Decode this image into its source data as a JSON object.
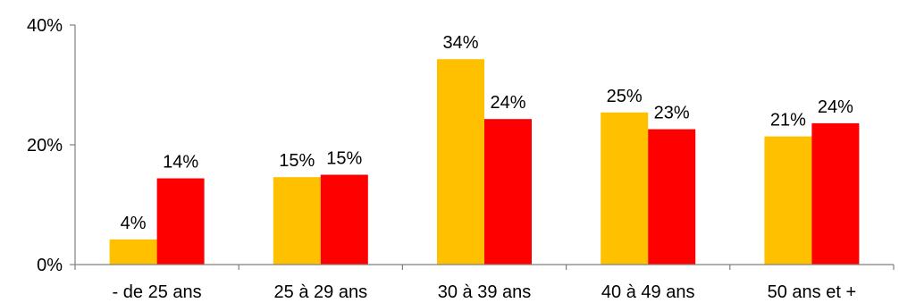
{
  "chart_data": {
    "type": "bar",
    "categories": [
      "- de 25 ans",
      "25 à 29 ans",
      "30 à 39 ans",
      "40 à 49 ans",
      "50 ans et +"
    ],
    "series": [
      {
        "values": [
          4.2,
          14.6,
          34.3,
          25.4,
          21.4
        ],
        "color": "#FFC000",
        "labels": [
          "4%",
          "15%",
          "34%",
          "25%",
          "21%"
        ]
      },
      {
        "values": [
          14.4,
          15.0,
          24.3,
          22.6,
          23.6
        ],
        "color": "#FF0000",
        "labels": [
          "14%",
          "15%",
          "24%",
          "23%",
          "24%"
        ]
      }
    ],
    "yticks": [
      0,
      20,
      40
    ],
    "ytick_labels": [
      "0%",
      "20%",
      "40%"
    ],
    "ylim": [
      0,
      40
    ],
    "grid": false,
    "legend": "none",
    "title": "",
    "xlabel": "",
    "ylabel": ""
  }
}
